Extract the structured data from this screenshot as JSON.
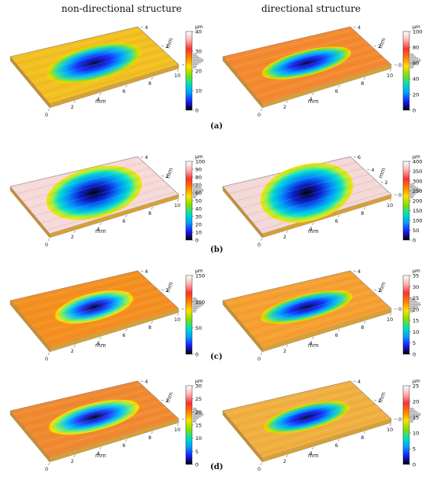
{
  "headers": {
    "left": "non-directional structure",
    "right": "directional structure"
  },
  "panel_labels": [
    "(a)",
    "(b)",
    "(c)",
    "(d)"
  ],
  "axis_unit": "mm",
  "colorbar_unit": "µm",
  "panels": [
    {
      "id": "a-left",
      "row": 0,
      "col": 0,
      "colorbar_ticks": [
        "40",
        "30",
        "20",
        "10",
        "0"
      ],
      "x_ticks": [
        "0",
        "2",
        "4",
        "6",
        "8",
        "10"
      ],
      "y_ticks": [
        "0",
        "2",
        "4"
      ],
      "variant": "irregular"
    },
    {
      "id": "a-right",
      "row": 0,
      "col": 1,
      "colorbar_ticks": [
        "100",
        "80",
        "60",
        "40",
        "20",
        "0"
      ],
      "x_ticks": [
        "0",
        "2",
        "4",
        "6",
        "8",
        "10"
      ],
      "y_ticks": [
        "0",
        "2",
        "4"
      ],
      "variant": "slot"
    },
    {
      "id": "b-left",
      "row": 1,
      "col": 0,
      "colorbar_ticks": [
        "100",
        "90",
        "80",
        "70",
        "60",
        "50",
        "40",
        "30",
        "20",
        "10",
        "0"
      ],
      "x_ticks": [
        "0",
        "2",
        "4",
        "6",
        "8",
        "10"
      ],
      "y_ticks": [
        "0",
        "2",
        "4"
      ],
      "variant": "bowl"
    },
    {
      "id": "b-right",
      "row": 1,
      "col": 1,
      "colorbar_ticks": [
        "400",
        "350",
        "300",
        "250",
        "200",
        "150",
        "100",
        "50",
        "0"
      ],
      "x_ticks": [
        "0",
        "2",
        "4",
        "6",
        "8",
        "10"
      ],
      "y_ticks": [
        "0",
        "2",
        "4",
        "6"
      ],
      "variant": "deep"
    },
    {
      "id": "c-left",
      "row": 2,
      "col": 0,
      "colorbar_ticks": [
        "150",
        "100",
        "50",
        "0"
      ],
      "x_ticks": [
        "0",
        "2",
        "4",
        "6",
        "8",
        "10"
      ],
      "y_ticks": [
        "0",
        "2",
        "4"
      ],
      "variant": "ellipse"
    },
    {
      "id": "c-right",
      "row": 2,
      "col": 1,
      "colorbar_ticks": [
        "35",
        "30",
        "25",
        "20",
        "15",
        "10",
        "5",
        "0"
      ],
      "x_ticks": [
        "0",
        "2",
        "4",
        "6",
        "8",
        "10"
      ],
      "y_ticks": [
        "0",
        "2",
        "4"
      ],
      "variant": "grooves"
    },
    {
      "id": "d-left",
      "row": 3,
      "col": 0,
      "colorbar_ticks": [
        "30",
        "25",
        "20",
        "15",
        "10",
        "5",
        "0"
      ],
      "x_ticks": [
        "0",
        "2",
        "4",
        "6",
        "8",
        "10"
      ],
      "y_ticks": [
        "0",
        "2",
        "4"
      ],
      "variant": "rough"
    },
    {
      "id": "d-right",
      "row": 3,
      "col": 1,
      "colorbar_ticks": [
        "25",
        "20",
        "15",
        "10",
        "5",
        "0"
      ],
      "x_ticks": [
        "0",
        "2",
        "4",
        "6",
        "8",
        "10"
      ],
      "y_ticks": [
        "0",
        "2",
        "4"
      ],
      "variant": "rough2"
    }
  ],
  "colors": {
    "colorbar": [
      "#000000",
      "#1a1aff",
      "#00a0ff",
      "#00e0c0",
      "#7fe000",
      "#ffe000",
      "#ff8000",
      "#ff3030",
      "#ffb0b0",
      "#ffffff"
    ]
  }
}
